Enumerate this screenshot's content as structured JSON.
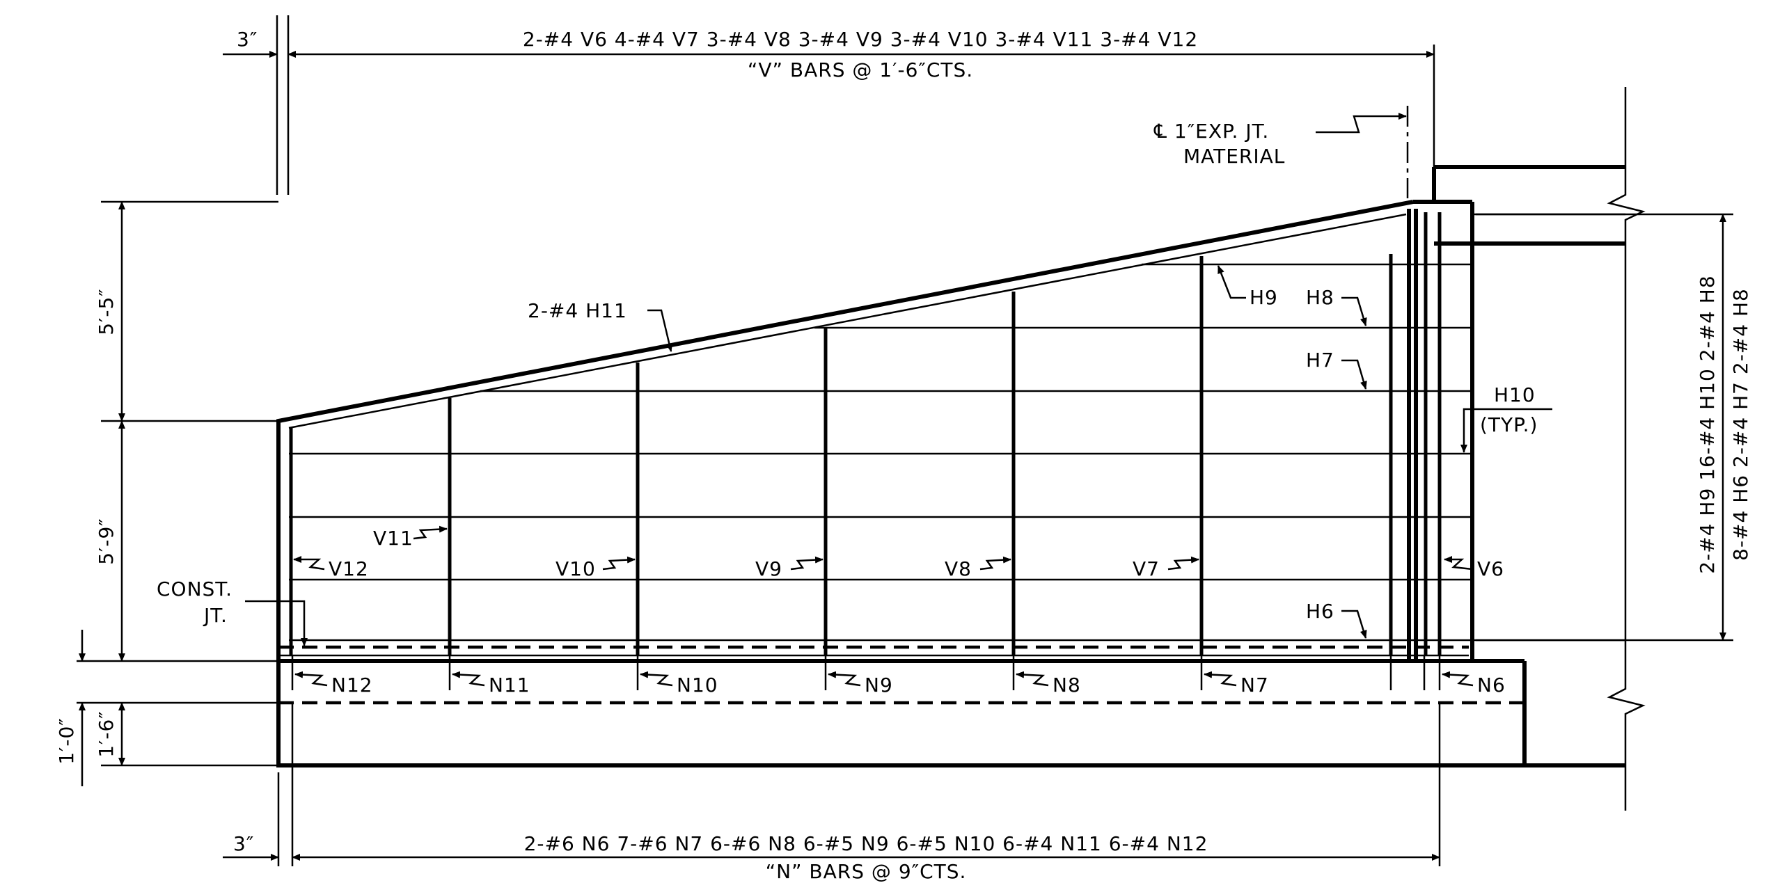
{
  "dims": {
    "top_left_offset": "3″",
    "bottom_left_offset": "3″",
    "upper_height": "5′-5″",
    "lower_height": "5′-9″",
    "footing_a": "1′-6″",
    "footing_b": "1′-0″"
  },
  "v_bars": {
    "schedule": "2-#4  V6  4-#4  V7  3-#4  V8  3-#4  V9  3-#4  V10  3-#4  V11  3-#4  V12",
    "spacing": "“V” BARS @ 1′-6″CTS."
  },
  "n_bars": {
    "schedule": "2-#6  N6  7-#6  N7  6-#6  N8  6-#5  N9  6-#5  N10  6-#4  N11  6-#4  N12",
    "spacing": "“N” BARS @ 9″CTS."
  },
  "joint": {
    "line1": "℄ 1″EXP. JT.",
    "line2": "MATERIAL"
  },
  "const_joint": {
    "line1": "CONST.",
    "line2": "JT."
  },
  "right_schedule": {
    "line1": "2-#4  H9  16-#4  H10  2-#4  H8",
    "line2": "8-#4  H6  2-#4  H7  2-#4  H8"
  },
  "labels": {
    "h11": "2-#4  H11",
    "h9": "H9",
    "h8": "H8",
    "h7": "H7",
    "h6": "H6",
    "h10": "H10",
    "h10_typ": "(TYP.)",
    "v6": "V6",
    "v7": "V7",
    "v8": "V8",
    "v9": "V9",
    "v10": "V10",
    "v11": "V11",
    "v12": "V12",
    "n6": "N6",
    "n7": "N7",
    "n8": "N8",
    "n9": "N9",
    "n10": "N10",
    "n11": "N11",
    "n12": "N12"
  }
}
